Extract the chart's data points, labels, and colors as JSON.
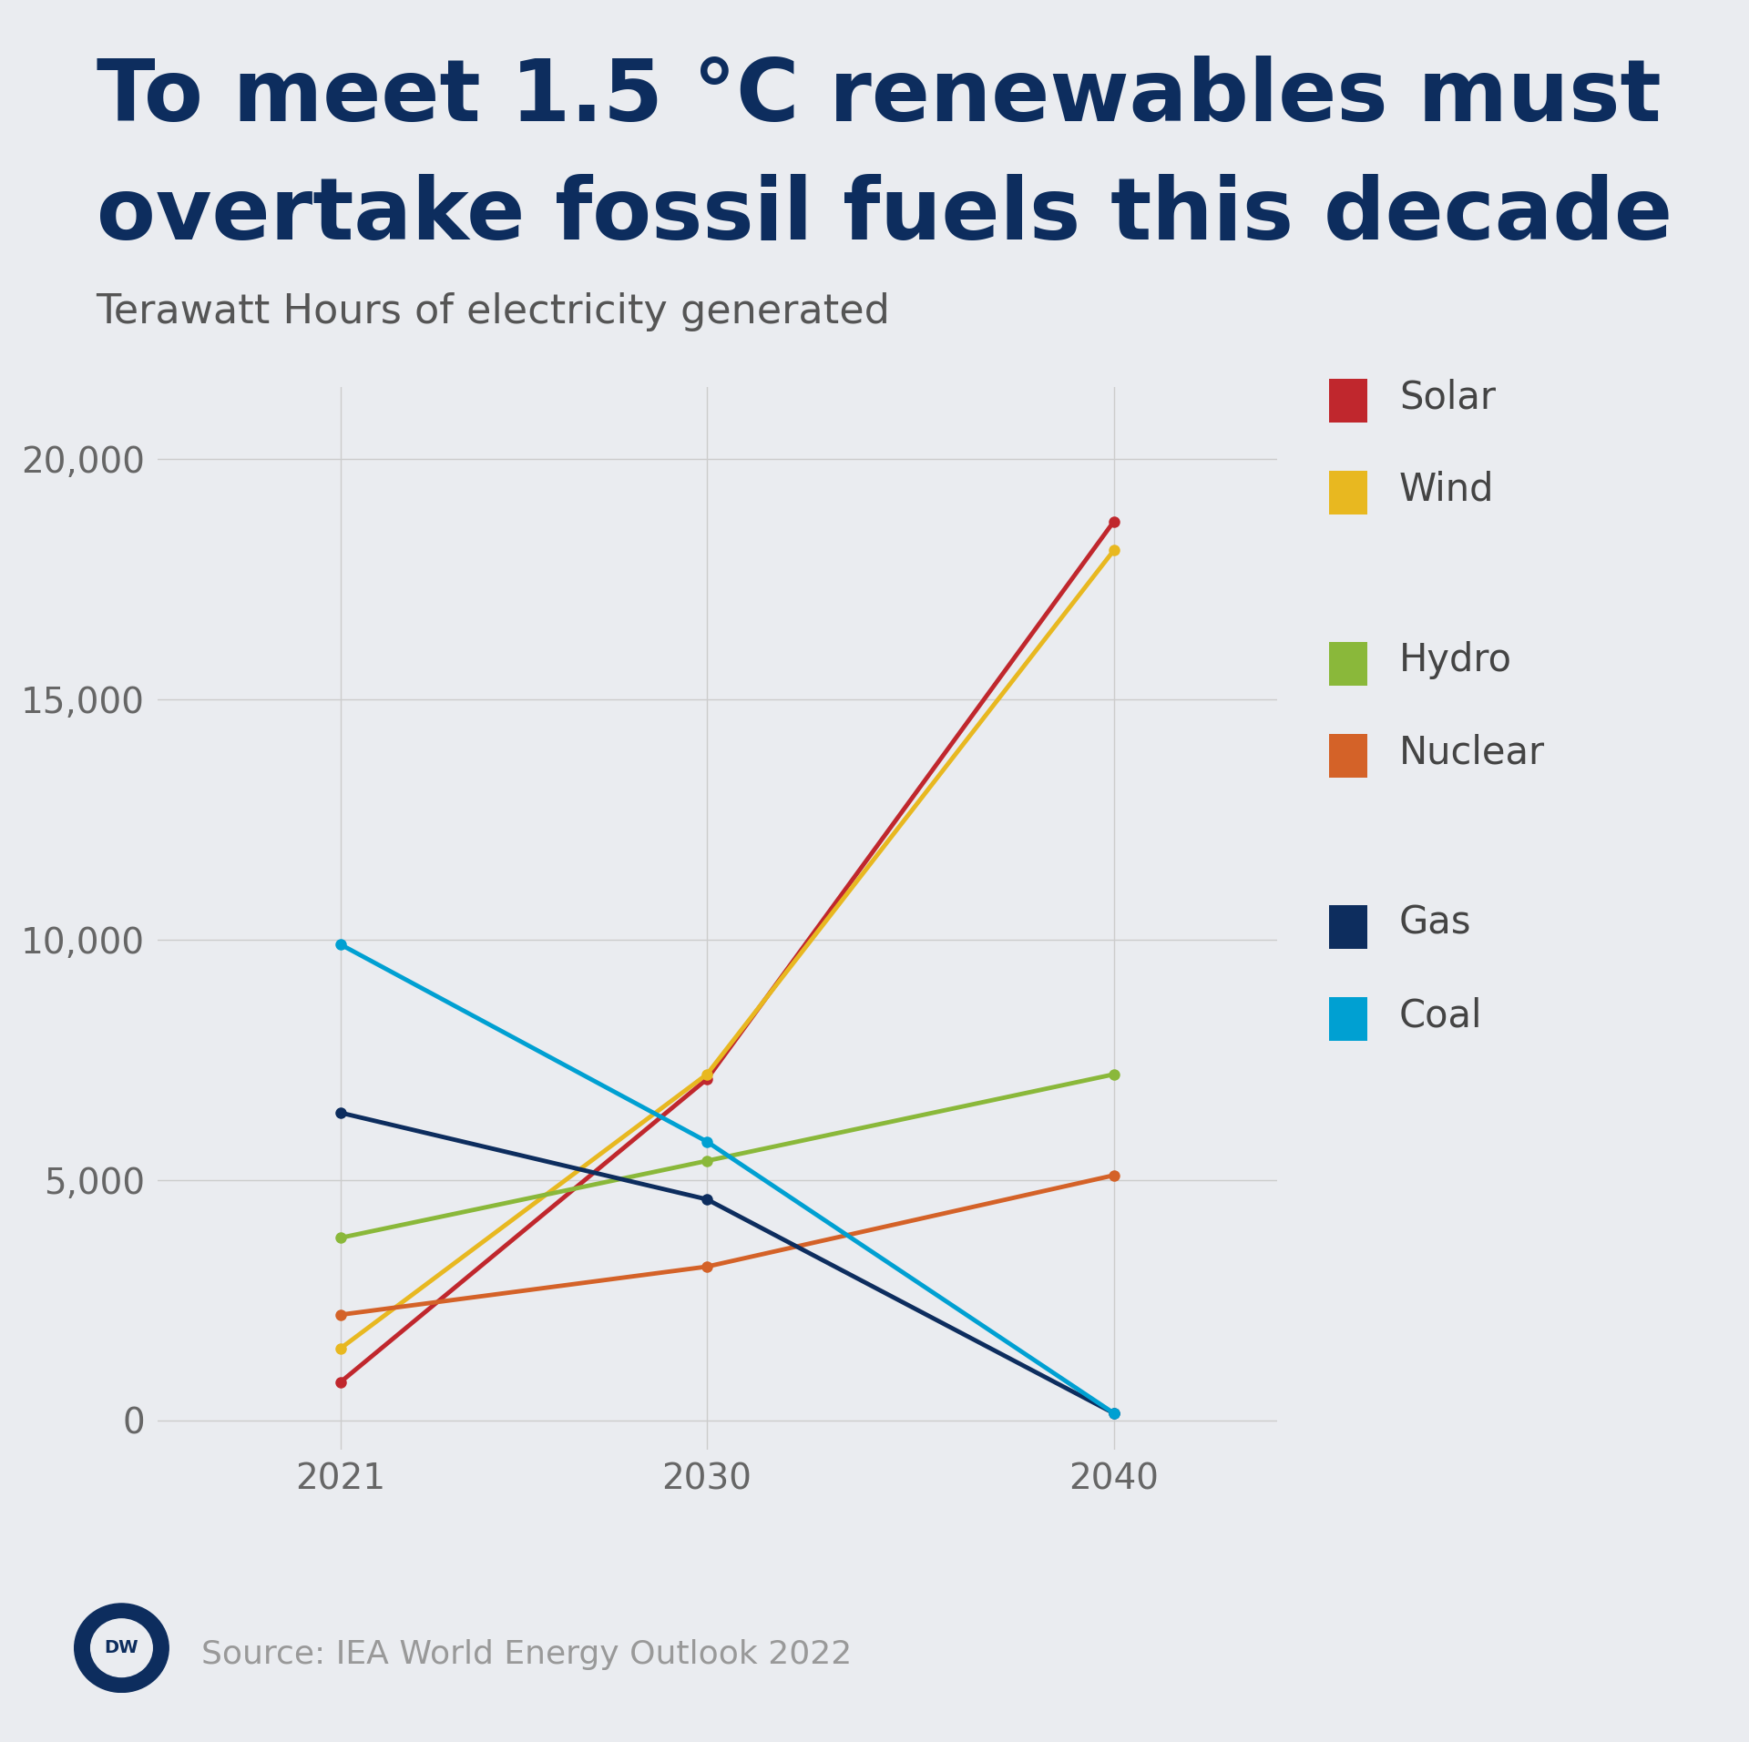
{
  "title_line1": "To meet 1.5 °C renewables must",
  "title_line2": "overtake fossil fuels this decade",
  "subtitle": "Terawatt Hours of electricity generated",
  "source": "Source: IEA World Energy Outlook 2022",
  "years": [
    2021,
    2030,
    2040
  ],
  "series": [
    {
      "name": "Solar",
      "color": "#c0272d",
      "values": [
        800,
        7100,
        18700
      ]
    },
    {
      "name": "Wind",
      "color": "#e8b820",
      "values": [
        1500,
        7200,
        18100
      ]
    },
    {
      "name": "Hydro",
      "color": "#8ab83a",
      "values": [
        3800,
        5400,
        7200
      ]
    },
    {
      "name": "Nuclear",
      "color": "#d46228",
      "values": [
        2200,
        3200,
        5100
      ]
    },
    {
      "name": "Gas",
      "color": "#0d2d5e",
      "values": [
        6400,
        4600,
        150
      ]
    },
    {
      "name": "Coal",
      "color": "#00a0d2",
      "values": [
        9900,
        5800,
        150
      ]
    }
  ],
  "background_color": "#eaecf0",
  "title_color": "#0d2d5e",
  "subtitle_color": "#555555",
  "source_color": "#999999",
  "grid_color": "#cccccc",
  "tick_color": "#666666",
  "ylim": [
    -600,
    21500
  ],
  "yticks": [
    0,
    5000,
    10000,
    15000,
    20000
  ],
  "ytick_labels": [
    "0",
    "5,000",
    "10,000",
    "15,000",
    "20,000"
  ],
  "xticks": [
    2021,
    2030,
    2040
  ],
  "title_fontsize": 68,
  "subtitle_fontsize": 32,
  "tick_fontsize": 28,
  "legend_fontsize": 30,
  "source_fontsize": 26,
  "line_width": 3.5,
  "marker_size": 9
}
